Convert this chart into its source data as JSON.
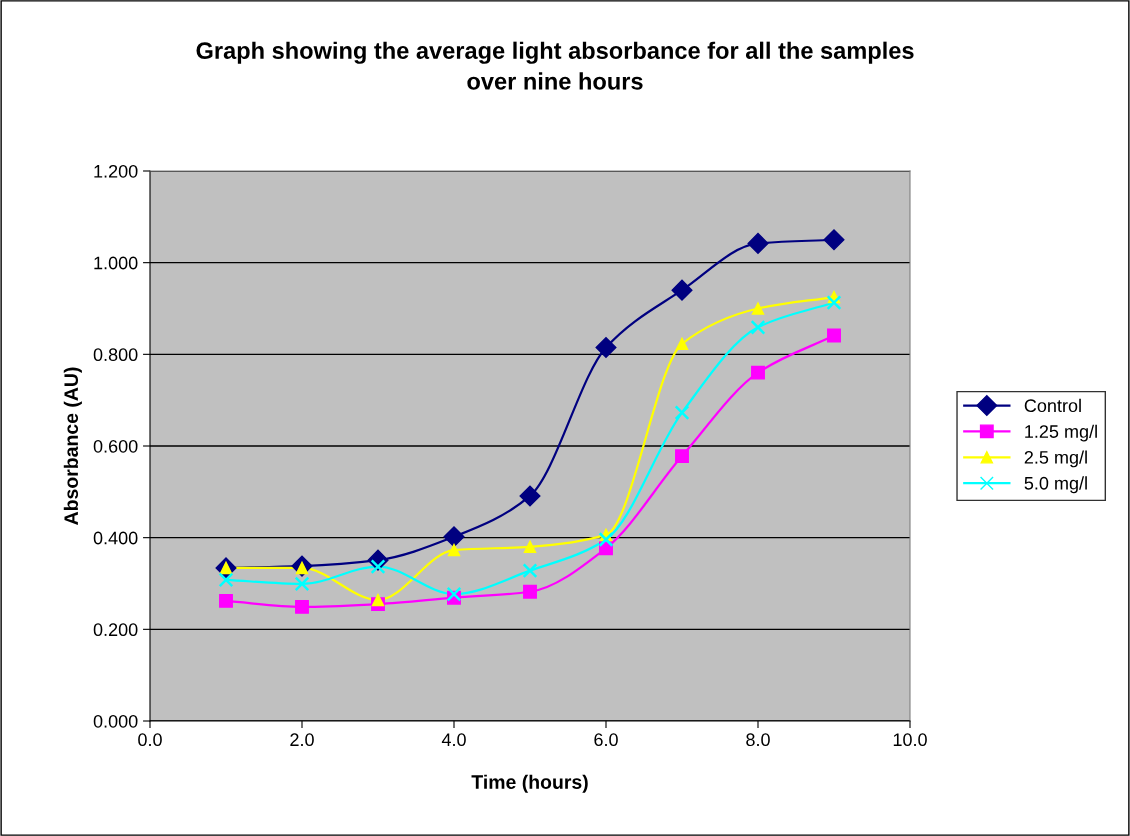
{
  "chart_data": {
    "type": "line",
    "title": "Graph showing the average light absorbance for all the samples over nine hours",
    "xlabel": "Time (hours)",
    "ylabel": "Absorbance (AU)",
    "x": [
      1,
      2,
      3,
      4,
      5,
      6,
      7,
      8,
      9
    ],
    "xlim": [
      0,
      10
    ],
    "xticks": [
      {
        "value": 0,
        "label": "0.0"
      },
      {
        "value": 2,
        "label": "2.0"
      },
      {
        "value": 4,
        "label": "4.0"
      },
      {
        "value": 6,
        "label": "6.0"
      },
      {
        "value": 8,
        "label": "8.0"
      },
      {
        "value": 10,
        "label": "10.0"
      }
    ],
    "ylim": [
      0,
      1.2
    ],
    "yticks": [
      {
        "value": 0,
        "label": "0.000"
      },
      {
        "value": 0.2,
        "label": "0.200"
      },
      {
        "value": 0.4,
        "label": "0.400"
      },
      {
        "value": 0.6,
        "label": "0.600"
      },
      {
        "value": 0.8,
        "label": "0.800"
      },
      {
        "value": 1.0,
        "label": "1.000"
      },
      {
        "value": 1.2,
        "label": "1.200"
      }
    ],
    "grid": "y",
    "legend": "right",
    "series": [
      {
        "name": "Control",
        "color": "#000080",
        "marker": "diamond",
        "values": [
          0.334,
          0.338,
          0.351,
          0.402,
          0.491,
          0.815,
          0.94,
          1.042,
          1.05
        ]
      },
      {
        "name": "1.25 mg/l",
        "color": "#ff00ff",
        "marker": "square",
        "values": [
          0.262,
          0.249,
          0.255,
          0.269,
          0.282,
          0.377,
          0.578,
          0.76,
          0.841
        ]
      },
      {
        "name": "2.5 mg/l",
        "color": "#ffff00",
        "marker": "triangle",
        "values": [
          0.334,
          0.334,
          0.264,
          0.373,
          0.38,
          0.406,
          0.823,
          0.9,
          0.925
        ]
      },
      {
        "name": "5.0 mg/l",
        "color": "#00ffff",
        "marker": "cross",
        "values": [
          0.308,
          0.299,
          0.337,
          0.277,
          0.328,
          0.396,
          0.673,
          0.859,
          0.913
        ]
      }
    ]
  }
}
